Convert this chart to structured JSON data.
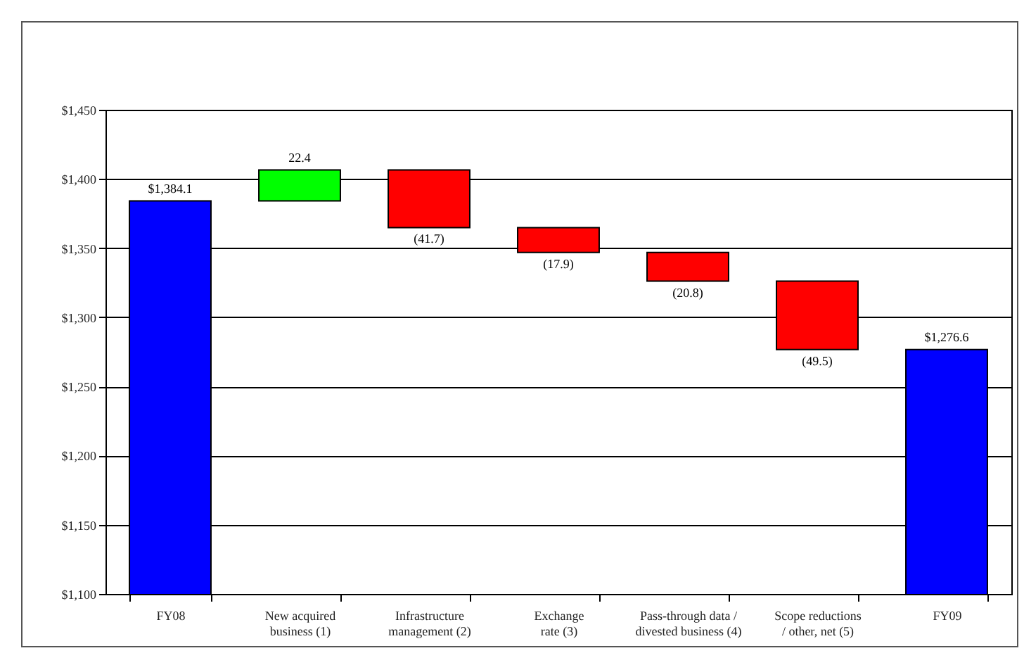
{
  "chart_data": {
    "type": "bar",
    "categories": [
      "FY08",
      "New acquired business (1)",
      "Infrastructure management (2)",
      "Exchange rate (3)",
      "Pass-through data / divested business (4)",
      "Scope reductions / other, net (5)",
      "FY09"
    ],
    "values": [
      1384.1,
      22.4,
      -41.7,
      -17.9,
      -20.8,
      -49.5,
      1276.6
    ],
    "base": [
      null,
      1384.1,
      1406.5,
      1364.8,
      1346.9,
      1326.1,
      null
    ],
    "colors": [
      "#0000ff",
      "#00ff00",
      "#ff0000",
      "#ff0000",
      "#ff0000",
      "#ff0000",
      "#0000ff"
    ],
    "value_labels": [
      "$1,384.1",
      "22.4",
      "(41.7)",
      "(17.9)",
      "(20.8)",
      "(49.5)",
      "$1,276.6"
    ],
    "ylim": [
      1100,
      1450
    ],
    "yticks": [
      {
        "value": 1100,
        "label": "$1,100"
      },
      {
        "value": 1150,
        "label": "$1,150"
      },
      {
        "value": 1200,
        "label": "$1,200"
      },
      {
        "value": 1250,
        "label": "$1,250"
      },
      {
        "value": 1300,
        "label": "$1,300"
      },
      {
        "value": 1350,
        "label": "$1,350"
      },
      {
        "value": 1400,
        "label": "$1,400"
      },
      {
        "value": 1450,
        "label": "$1,450"
      }
    ],
    "grid": "y"
  }
}
